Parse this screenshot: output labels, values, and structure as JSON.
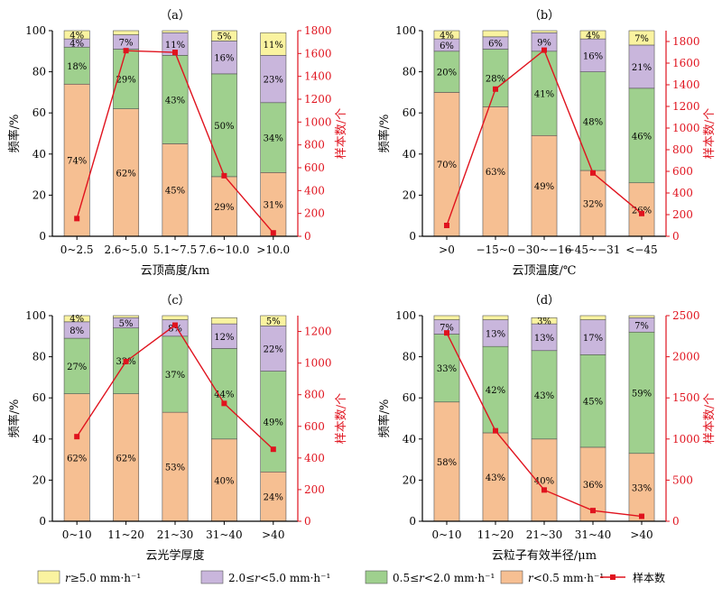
{
  "colors": {
    "r_ge_5": "#faf3a0",
    "r_2_5": "#c9b6dc",
    "r_05_2": "#9fd08e",
    "r_lt_05": "#f6bf92",
    "sample": "#e0131e",
    "bar_edge": "#555555"
  },
  "legend": [
    {
      "key": "r_ge_5",
      "prefix": "r",
      "rest": "≥5.0 mm·h⁻¹"
    },
    {
      "key": "r_2_5",
      "prefix": "2.0≤",
      "italic": "r",
      "rest": "<5.0 mm·h⁻¹"
    },
    {
      "key": "r_05_2",
      "prefix": "0.5≤",
      "italic": "r",
      "rest": "<2.0 mm·h⁻¹"
    },
    {
      "key": "r_lt_05",
      "prefix": "",
      "italic": "r",
      "rest": "<0.5 mm·h⁻¹"
    },
    {
      "key": "sample",
      "label": "样本数"
    }
  ],
  "chart_data": [
    {
      "type": "bar",
      "panel": "（a）",
      "xlabel": "云顶高度/km",
      "ylabel": "频率/%",
      "y2label": "样本数/个",
      "categories": [
        "0~2.5",
        "2.6~5.0",
        "5.1~7.5",
        "7.6~10.0",
        ">10.0"
      ],
      "ylim": [
        0,
        100
      ],
      "yticks": [
        0,
        20,
        40,
        60,
        80,
        100
      ],
      "y2lim": [
        0,
        1800
      ],
      "y2ticks": [
        0,
        200,
        400,
        600,
        800,
        1000,
        1200,
        1400,
        1600,
        1800
      ],
      "series": [
        {
          "key": "r_lt_05",
          "values": [
            74,
            62,
            45,
            29,
            31
          ],
          "labels": [
            "74%",
            "62%",
            "45%",
            "29%",
            "31%"
          ]
        },
        {
          "key": "r_05_2",
          "values": [
            18,
            29,
            43,
            50,
            34
          ],
          "labels": [
            "18%",
            "29%",
            "43%",
            "50%",
            "34%"
          ]
        },
        {
          "key": "r_2_5",
          "values": [
            4,
            7,
            11,
            16,
            23
          ],
          "labels": [
            "4%",
            "7%",
            "11%",
            "16%",
            "23%"
          ]
        },
        {
          "key": "r_ge_5",
          "values": [
            4,
            2,
            1,
            5,
            11
          ],
          "labels": [
            "4%",
            "",
            "",
            "5%",
            "11%"
          ]
        }
      ],
      "sample_counts": [
        155,
        1625,
        1610,
        530,
        30
      ]
    },
    {
      "type": "bar",
      "panel": "（b）",
      "xlabel": "云顶温度/℃",
      "ylabel": "频率/%",
      "y2label": "样本数/个",
      "categories": [
        ">0",
        "−15~0",
        "−30~−16",
        "−45~−31",
        "<−45"
      ],
      "ylim": [
        0,
        100
      ],
      "yticks": [
        0,
        20,
        40,
        60,
        80,
        100
      ],
      "y2lim": [
        0,
        1900
      ],
      "y2ticks": [
        0,
        200,
        400,
        600,
        800,
        1000,
        1200,
        1400,
        1600,
        1800
      ],
      "series": [
        {
          "key": "r_lt_05",
          "values": [
            70,
            63,
            49,
            32,
            26
          ],
          "labels": [
            "70%",
            "63%",
            "49%",
            "32%",
            "26%"
          ]
        },
        {
          "key": "r_05_2",
          "values": [
            20,
            28,
            41,
            48,
            46
          ],
          "labels": [
            "20%",
            "28%",
            "41%",
            "48%",
            "46%"
          ]
        },
        {
          "key": "r_2_5",
          "values": [
            6,
            6,
            9,
            16,
            21
          ],
          "labels": [
            "6%",
            "6%",
            "9%",
            "16%",
            "21%"
          ]
        },
        {
          "key": "r_ge_5",
          "values": [
            4,
            3,
            1,
            4,
            7
          ],
          "labels": [
            "4%",
            "",
            "",
            "4%",
            "7%"
          ]
        }
      ],
      "sample_counts": [
        100,
        1360,
        1720,
        585,
        210
      ]
    },
    {
      "type": "bar",
      "panel": "（c）",
      "xlabel": "云光学厚度",
      "ylabel": "频率/%",
      "y2label": "样本数/个",
      "categories": [
        "0~10",
        "11~20",
        "21~30",
        "31~40",
        ">40"
      ],
      "ylim": [
        0,
        100
      ],
      "yticks": [
        0,
        20,
        40,
        60,
        80,
        100
      ],
      "y2lim": [
        0,
        1300
      ],
      "y2ticks": [
        0,
        200,
        400,
        600,
        800,
        1000,
        1200
      ],
      "series": [
        {
          "key": "r_lt_05",
          "values": [
            62,
            62,
            53,
            40,
            24
          ],
          "labels": [
            "62%",
            "62%",
            "53%",
            "40%",
            "24%"
          ]
        },
        {
          "key": "r_05_2",
          "values": [
            27,
            32,
            37,
            44,
            49
          ],
          "labels": [
            "27%",
            "32%",
            "37%",
            "44%",
            "49%"
          ]
        },
        {
          "key": "r_2_5",
          "values": [
            8,
            5,
            8,
            12,
            22
          ],
          "labels": [
            "8%",
            "5%",
            "8%",
            "12%",
            "22%"
          ]
        },
        {
          "key": "r_ge_5",
          "values": [
            4,
            2,
            2,
            3,
            5
          ],
          "labels": [
            "4%",
            "",
            "",
            "",
            "5%"
          ]
        }
      ],
      "sample_counts": [
        535,
        1010,
        1240,
        745,
        455
      ]
    },
    {
      "type": "bar",
      "panel": "（d）",
      "xlabel": "云粒子有效半径/μm",
      "ylabel": "频率/%",
      "y2label": "样本数/个",
      "categories": [
        "0~10",
        "11~20",
        "21~30",
        "31~40",
        ">40"
      ],
      "ylim": [
        0,
        100
      ],
      "yticks": [
        0,
        20,
        40,
        60,
        80,
        100
      ],
      "y2lim": [
        0,
        2500
      ],
      "y2ticks": [
        0,
        500,
        1000,
        1500,
        2000,
        2500
      ],
      "series": [
        {
          "key": "r_lt_05",
          "values": [
            58,
            43,
            40,
            36,
            33
          ],
          "labels": [
            "58%",
            "43%",
            "40%",
            "36%",
            "33%"
          ]
        },
        {
          "key": "r_05_2",
          "values": [
            33,
            42,
            43,
            45,
            59
          ],
          "labels": [
            "33%",
            "42%",
            "43%",
            "45%",
            "59%"
          ]
        },
        {
          "key": "r_2_5",
          "values": [
            7,
            13,
            13,
            17,
            7
          ],
          "labels": [
            "7%",
            "13%",
            "13%",
            "17%",
            "7%"
          ]
        },
        {
          "key": "r_ge_5",
          "values": [
            2,
            2,
            3,
            2,
            1
          ],
          "labels": [
            "",
            "",
            "3%",
            "",
            ""
          ]
        }
      ],
      "sample_counts": [
        2290,
        1100,
        380,
        130,
        60
      ]
    }
  ]
}
